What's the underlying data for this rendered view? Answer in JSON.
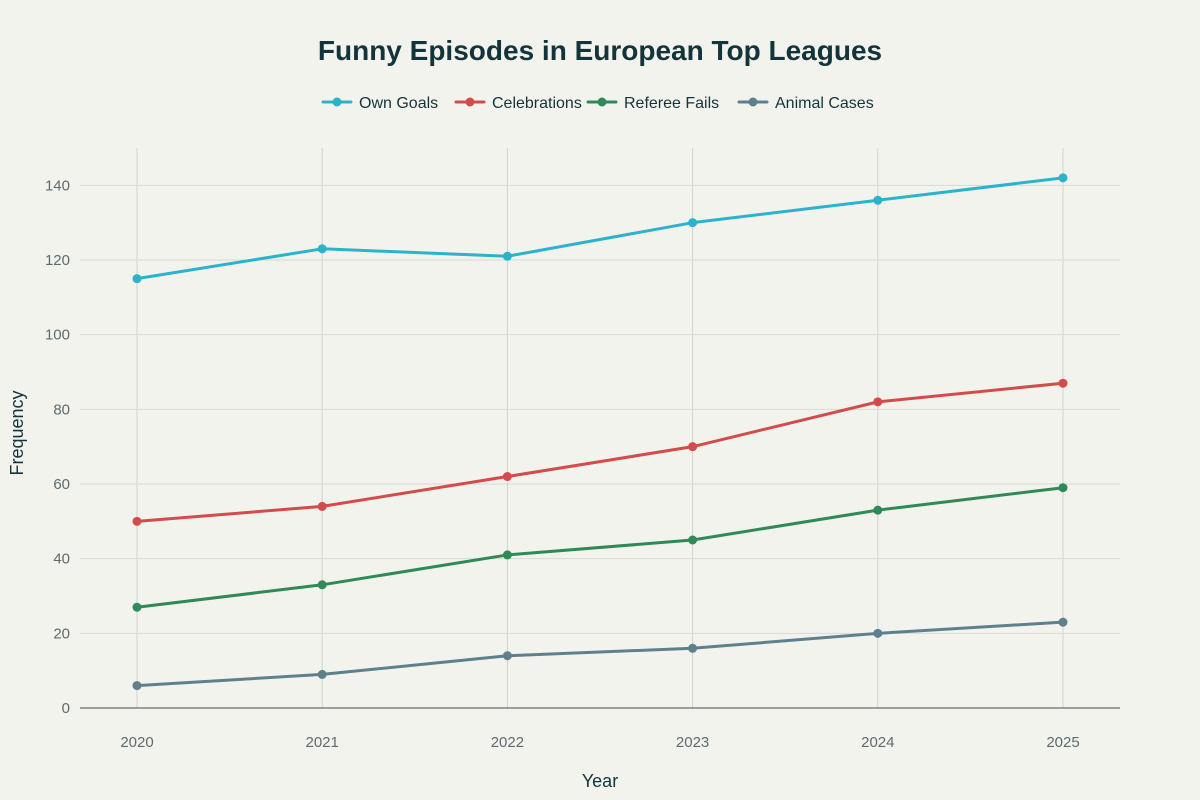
{
  "chart_data": {
    "type": "line",
    "title": "Funny Episodes in European Top Leagues",
    "xlabel": "Year",
    "ylabel": "Frequency",
    "x": [
      "2020",
      "2021",
      "2022",
      "2023",
      "2024",
      "2025"
    ],
    "ylim": [
      0,
      150
    ],
    "yticks": [
      0,
      20,
      40,
      60,
      80,
      100,
      120,
      140
    ],
    "ytick_labels": [
      "0",
      "20",
      "40",
      "60",
      "80",
      "100",
      "120",
      "140"
    ],
    "grid": true,
    "legend_position": "top-center",
    "series": [
      {
        "name": "Own Goals",
        "color": "#2bb3cc",
        "values": [
          115,
          123,
          121,
          130,
          136,
          142
        ]
      },
      {
        "name": "Celebrations",
        "color": "#d44b4b",
        "values": [
          50,
          54,
          62,
          70,
          82,
          87
        ]
      },
      {
        "name": "Referee Fails",
        "color": "#2f8a57",
        "values": [
          27,
          33,
          41,
          45,
          53,
          59
        ]
      },
      {
        "name": "Animal Cases",
        "color": "#5e808d",
        "values": [
          6,
          9,
          14,
          16,
          20,
          23
        ]
      }
    ]
  }
}
